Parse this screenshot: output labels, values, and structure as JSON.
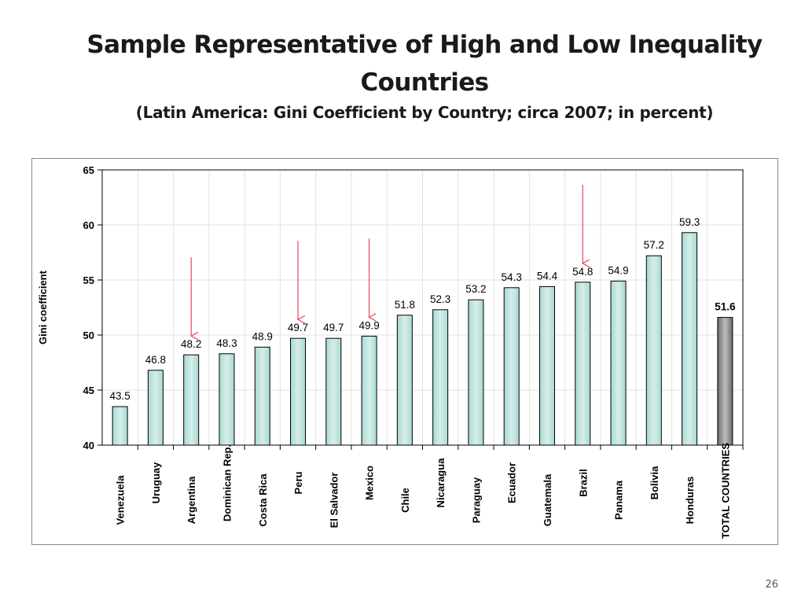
{
  "slide": {
    "title": "Sample Representative of High and Low Inequality Countries",
    "subtitle": "(Latin America: Gini Coefficient by Country; circa 2007; in percent)",
    "page_number": "26"
  },
  "chart_data": {
    "type": "bar",
    "title": "",
    "xlabel": "",
    "ylabel": "Gini coefficient",
    "ylim": [
      40,
      65
    ],
    "yticks": [
      "40",
      "45",
      "50",
      "55",
      "60",
      "65"
    ],
    "grid": true,
    "categories": [
      "Venezuela",
      "Uruguay",
      "Argentina",
      "Dominican Rep.",
      "Costa Rica",
      "Peru",
      "El Salvador",
      "Mexico",
      "Chile",
      "Nicaragua",
      "Paraguay",
      "Ecuador",
      "Guatemala",
      "Brazil",
      "Panama",
      "Bolivia",
      "Honduras",
      "TOTAL COUNTRIES"
    ],
    "values": [
      43.5,
      46.8,
      48.2,
      48.3,
      48.9,
      49.7,
      49.7,
      49.9,
      51.8,
      52.3,
      53.2,
      54.3,
      54.4,
      54.8,
      54.9,
      57.2,
      59.3,
      51.6
    ],
    "value_labels": [
      "43.5",
      "46.8",
      "48.2",
      "48.3",
      "48.9",
      "49.7",
      "49.7",
      "49.9",
      "51.8",
      "52.3",
      "53.2",
      "54.3",
      "54.4",
      "54.8",
      "54.9",
      "57.2",
      "59.3",
      "51.6"
    ],
    "highlighted_countries": [
      "Argentina",
      "Peru",
      "Mexico",
      "Brazil"
    ],
    "colors": {
      "bar_fill": "#d6eeea",
      "bar_total_fill": "#8c8c8c",
      "bar_stroke": "#000000",
      "arrow": "#e8475a",
      "grid": "#e2e2e2"
    }
  }
}
